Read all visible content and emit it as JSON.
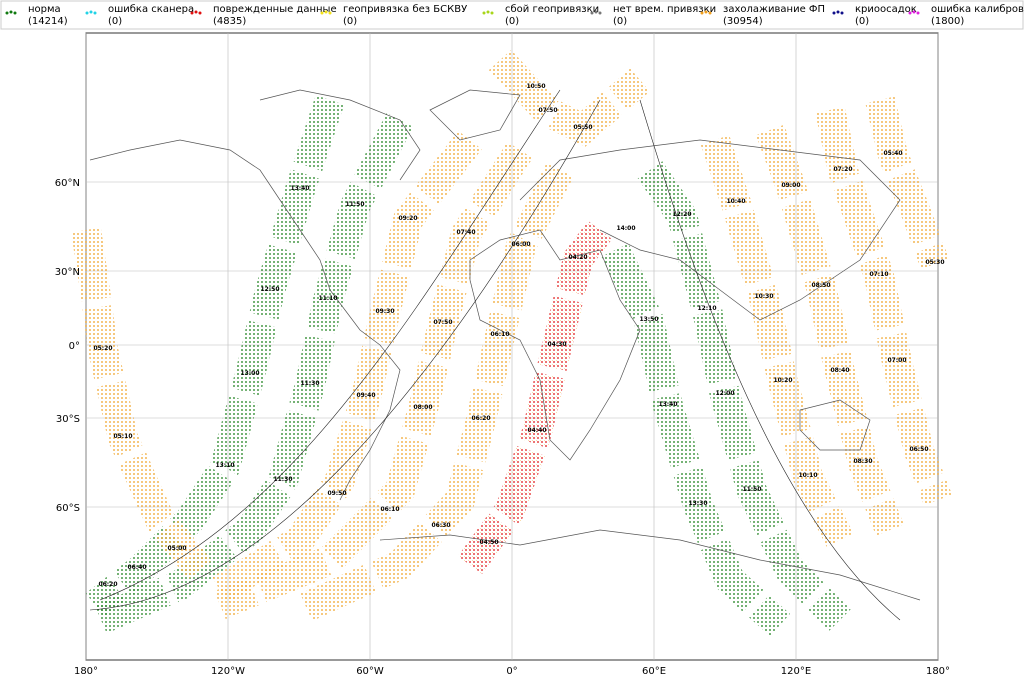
{
  "legend": [
    {
      "label": "норма",
      "count": "(14214)",
      "color": "#117a11"
    },
    {
      "label": "ошибка сканера",
      "count": "(0)",
      "color": "#22d3e6"
    },
    {
      "label": "поврежденные данные",
      "count": "(4835)",
      "color": "#e01010"
    },
    {
      "label": "геопривязка без БСКВУ",
      "count": "(0)",
      "color": "#f2e21a"
    },
    {
      "label": "сбой геопривязки",
      "count": "(0)",
      "color": "#a8d61a"
    },
    {
      "label": "нет врем. привязки",
      "count": "(0)",
      "color": "#777777"
    },
    {
      "label": "захолаживание ФП",
      "count": "(30954)",
      "color": "#f0a020"
    },
    {
      "label": "криоосадок",
      "count": "(0)",
      "color": "#10108a"
    },
    {
      "label": "ошибка калибровки",
      "count": "(1800)",
      "color": "#e020e0"
    }
  ],
  "map": {
    "lat_ticks": [
      "60°N",
      "30°N",
      "0°",
      "30°S",
      "60°S"
    ],
    "lon_ticks": [
      "180°",
      "120°W",
      "60°W",
      "0°",
      "60°E",
      "120°E",
      "180°"
    ],
    "time_labels": [
      "13:40",
      "11:50",
      "12:50",
      "11:10",
      "13:00",
      "11:30",
      "13:10",
      "11:30",
      "05:20",
      "05:10",
      "09:50",
      "06:10",
      "06:30",
      "04:50",
      "05:00",
      "06:40",
      "06:20",
      "12:20",
      "13:50",
      "12:10",
      "13:40",
      "12:00",
      "13:30",
      "11:50",
      "14:00",
      "09:20",
      "07:40",
      "09:30",
      "07:50",
      "09:40",
      "08:00",
      "06:20",
      "04:40",
      "06:10",
      "04:30",
      "06:00",
      "04:20",
      "05:50",
      "07:50",
      "10:50",
      "10:40",
      "09:00",
      "07:20",
      "05:40",
      "10:30",
      "08:50",
      "07:10",
      "05:30",
      "10:20",
      "08:40",
      "07:00",
      "10:10",
      "08:30",
      "06:50"
    ]
  }
}
